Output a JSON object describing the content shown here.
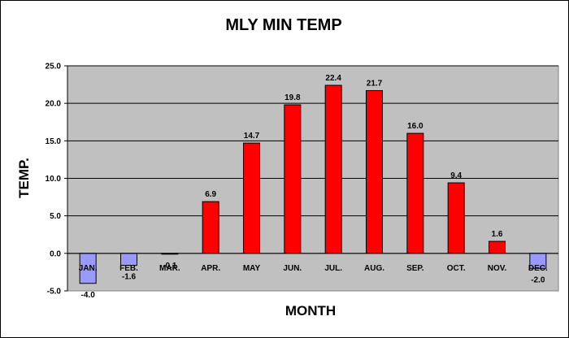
{
  "chart_data": {
    "type": "bar",
    "title": "MLY MIN TEMP",
    "xlabel": "MONTH",
    "ylabel": "TEMP.",
    "categories": [
      "JAN.",
      "FEB.",
      "MAR.",
      "APR.",
      "MAY",
      "JUN.",
      "JUL.",
      "AUG.",
      "SEP.",
      "OCT.",
      "NOV.",
      "DEC."
    ],
    "values": [
      -4.0,
      -1.6,
      -0.1,
      6.9,
      14.7,
      19.8,
      22.4,
      21.7,
      16.0,
      9.4,
      1.6,
      -2.0
    ],
    "data_labels": [
      "-4.0",
      "-1.6",
      "-0.1",
      "6.9",
      "14.7",
      "19.8",
      "22.4",
      "21.7",
      "16.0",
      "9.4",
      "1.6",
      "-2.0"
    ],
    "ylim": [
      -5.0,
      25.0
    ],
    "yticks": [
      "-5.0",
      "0.0",
      "5.0",
      "10.0",
      "15.0",
      "20.0",
      "25.0"
    ],
    "grid": true,
    "legend": false,
    "colors": {
      "positive": "#ff0000",
      "negative": "#9999ff",
      "plot_background": "#c0c0c0",
      "gridline": "#000000"
    }
  }
}
